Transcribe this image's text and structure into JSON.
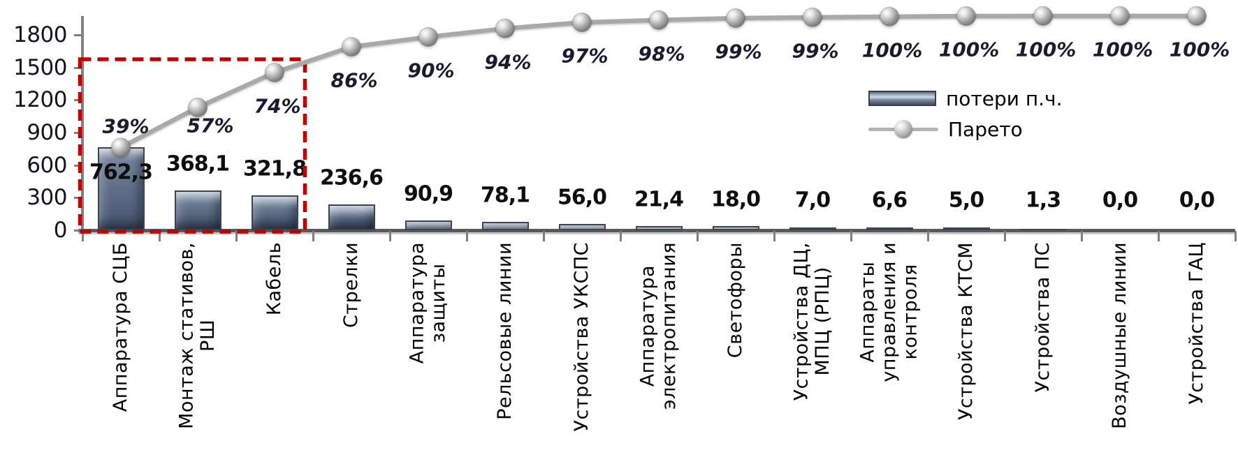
{
  "chart_data": {
    "type": "bar",
    "subtype": "pareto-combo",
    "title": "",
    "categories": [
      "Аппаратура СЦБ",
      "Монтаж стативов,\nРШ",
      "Кабель",
      "Стрелки",
      "Аппаратура\nзащиты",
      "Рельсовые линии",
      "Устройства УКСПС",
      "Аппаратура\nэлектропитания",
      "Светофоры",
      "Устройства ДЦ,\nМПЦ (РПЦ)",
      "Аппараты\nуправления и\nконтроля",
      "Устройства КТСМ",
      "Устройства  ПС",
      "Воздушные линии",
      "Устройства ГАЦ"
    ],
    "series": [
      {
        "name": "потери п.ч.",
        "type": "bar",
        "values": [
          762.3,
          368.1,
          321.8,
          236.6,
          90.9,
          78.1,
          56.0,
          21.4,
          18.0,
          7.0,
          6.6,
          5.0,
          1.3,
          0.0,
          0.0
        ],
        "value_labels": [
          "762,3",
          "368,1",
          "321,8",
          "236,6",
          "90,9",
          "78,1",
          "56,0",
          "21,4",
          "18,0",
          "7,0",
          "6,6",
          "5,0",
          "1,3",
          "0,0",
          "0,0"
        ]
      },
      {
        "name": "Парето",
        "type": "line",
        "point_labels": [
          "39%",
          "57%",
          "74%",
          "86%",
          "90%",
          "94%",
          "97%",
          "98%",
          "99%",
          "99%",
          "100%",
          "100%",
          "100%",
          "100%",
          "100%"
        ]
      }
    ],
    "y_axis": {
      "min": 0,
      "max": 1800,
      "step": 300,
      "tick_labels": [
        "0",
        "300",
        "600",
        "900",
        "1200",
        "1500",
        "1800"
      ]
    },
    "legend": {
      "position": "middle-right"
    },
    "annotations": [
      {
        "type": "dashed-box",
        "from_category_index": 0,
        "to_category_index": 2,
        "color": "#c00000"
      }
    ],
    "colors": {
      "bar_body": "#63748b",
      "bar_edge": "#3b4455",
      "bar_highlight": "#d3dde8",
      "line": "#a9a9a9",
      "marker": "#b2b2b2",
      "annotation_box": "#c00000",
      "axis": "#7f7f7f",
      "value_text": "#0d0d0d",
      "percent_text": "#171d2e"
    }
  }
}
